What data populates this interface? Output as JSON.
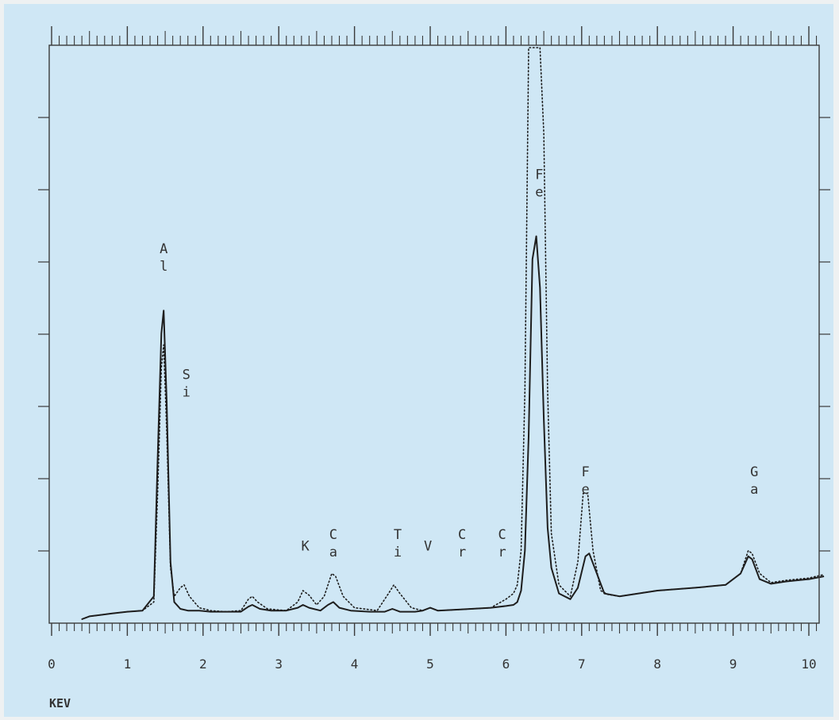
{
  "colors": {
    "page_background": "#eef1f2",
    "plot_background": "#cfe7f5",
    "frame": "#3a3a3a",
    "trace": "#1e1e1e"
  },
  "chart_data": {
    "type": "line",
    "title": "",
    "xlabel": "KEV",
    "ylabel": "",
    "xlim": [
      0,
      10.2
    ],
    "ylim": [
      0,
      100
    ],
    "x_ticks": [
      0,
      1,
      2,
      3,
      4,
      5,
      6,
      7,
      8,
      9,
      10
    ],
    "x_tick_labels": [
      "0",
      "1",
      "2",
      "3",
      "4",
      "5",
      "6",
      "7",
      "8",
      "9",
      "10"
    ],
    "grid": false,
    "legend": "none",
    "series": [
      {
        "style": "solid",
        "x": [
          0.4,
          0.5,
          0.8,
          1.0,
          1.2,
          1.35,
          1.4,
          1.45,
          1.48,
          1.52,
          1.57,
          1.62,
          1.7,
          1.8,
          1.95,
          2.1,
          2.3,
          2.5,
          2.6,
          2.65,
          2.75,
          2.9,
          3.1,
          3.25,
          3.32,
          3.4,
          3.55,
          3.65,
          3.72,
          3.8,
          3.95,
          4.2,
          4.4,
          4.5,
          4.6,
          4.8,
          4.9,
          5.0,
          5.1,
          5.4,
          5.8,
          6.0,
          6.1,
          6.15,
          6.2,
          6.25,
          6.3,
          6.35,
          6.4,
          6.45,
          6.5,
          6.55,
          6.6,
          6.7,
          6.85,
          6.95,
          7.05,
          7.1,
          7.2,
          7.3,
          7.5,
          8.0,
          8.5,
          8.9,
          9.1,
          9.2,
          9.25,
          9.35,
          9.5,
          9.7,
          10.0,
          10.2
        ],
        "y": [
          0,
          0.5,
          1,
          1.3,
          1.5,
          4,
          28,
          50,
          54,
          38,
          10,
          3,
          1.8,
          1.5,
          1.5,
          1.3,
          1.3,
          1.3,
          2.2,
          2.5,
          1.8,
          1.5,
          1.5,
          2.0,
          2.5,
          2.0,
          1.5,
          2.5,
          3.0,
          2.0,
          1.5,
          1.3,
          1.3,
          1.8,
          1.3,
          1.3,
          1.5,
          2.0,
          1.5,
          1.7,
          2.0,
          2.3,
          2.5,
          3.0,
          5.0,
          12,
          32,
          63,
          67,
          58,
          35,
          16,
          9,
          4.5,
          3.5,
          5.5,
          11,
          11.5,
          8,
          4.5,
          4.0,
          5.0,
          5.5,
          6.0,
          8,
          11,
          10.5,
          7,
          6.2,
          6.6,
          7.0,
          7.5
        ]
      },
      {
        "style": "dotted",
        "x": [
          0.4,
          0.5,
          0.8,
          1.0,
          1.2,
          1.35,
          1.4,
          1.45,
          1.48,
          1.52,
          1.57,
          1.62,
          1.7,
          1.75,
          1.82,
          1.95,
          2.1,
          2.3,
          2.5,
          2.6,
          2.65,
          2.72,
          2.85,
          3.1,
          3.25,
          3.32,
          3.4,
          3.5,
          3.6,
          3.7,
          3.75,
          3.85,
          4.0,
          4.3,
          4.45,
          4.52,
          4.6,
          4.75,
          4.9,
          5.0,
          5.1,
          5.4,
          5.8,
          6.0,
          6.1,
          6.15,
          6.2,
          6.25,
          6.3,
          6.35,
          6.4,
          6.45,
          6.5,
          6.55,
          6.6,
          6.7,
          6.85,
          6.95,
          7.02,
          7.08,
          7.15,
          7.25,
          7.35,
          7.5,
          8.0,
          8.5,
          8.9,
          9.1,
          9.2,
          9.25,
          9.35,
          9.5,
          9.7,
          10.0,
          10.2
        ],
        "y": [
          0,
          0.5,
          1,
          1.3,
          1.5,
          3,
          22,
          44,
          48,
          33,
          9,
          4,
          5.5,
          6.0,
          4,
          2,
          1.5,
          1.3,
          1.5,
          3.5,
          4.0,
          3.0,
          1.8,
          1.5,
          3,
          5.0,
          4.2,
          2.5,
          4,
          8,
          7.5,
          4,
          2,
          1.5,
          4.5,
          6.0,
          4.5,
          2.0,
          1.5,
          2.0,
          1.5,
          1.7,
          2.0,
          3.5,
          4.5,
          6,
          12,
          40,
          100,
          100,
          100,
          100,
          85,
          40,
          15,
          6,
          4,
          10,
          22,
          22,
          12,
          5,
          4.3,
          4.0,
          5.0,
          5.5,
          6.0,
          8,
          12,
          11.5,
          8,
          6.4,
          6.8,
          7.2,
          7.8
        ]
      }
    ],
    "annotations": [
      {
        "lines": [
          "A",
          "l"
        ],
        "x": 1.48,
        "y": 64
      },
      {
        "lines": [
          "S",
          "i"
        ],
        "x": 1.78,
        "y": 42
      },
      {
        "lines": [
          "K"
        ],
        "x": 3.35,
        "y": 12
      },
      {
        "lines": [
          "C",
          "a"
        ],
        "x": 3.72,
        "y": 14
      },
      {
        "lines": [
          "T",
          "i"
        ],
        "x": 4.57,
        "y": 14
      },
      {
        "lines": [
          "V"
        ],
        "x": 4.97,
        "y": 12
      },
      {
        "lines": [
          "C",
          "r"
        ],
        "x": 5.42,
        "y": 14
      },
      {
        "lines": [
          "C",
          "r"
        ],
        "x": 5.95,
        "y": 14
      },
      {
        "lines": [
          "F",
          "e"
        ],
        "x": 6.44,
        "y": 77
      },
      {
        "lines": [
          "F",
          "e"
        ],
        "x": 7.05,
        "y": 25
      },
      {
        "lines": [
          "G",
          "a"
        ],
        "x": 9.28,
        "y": 25
      }
    ]
  }
}
